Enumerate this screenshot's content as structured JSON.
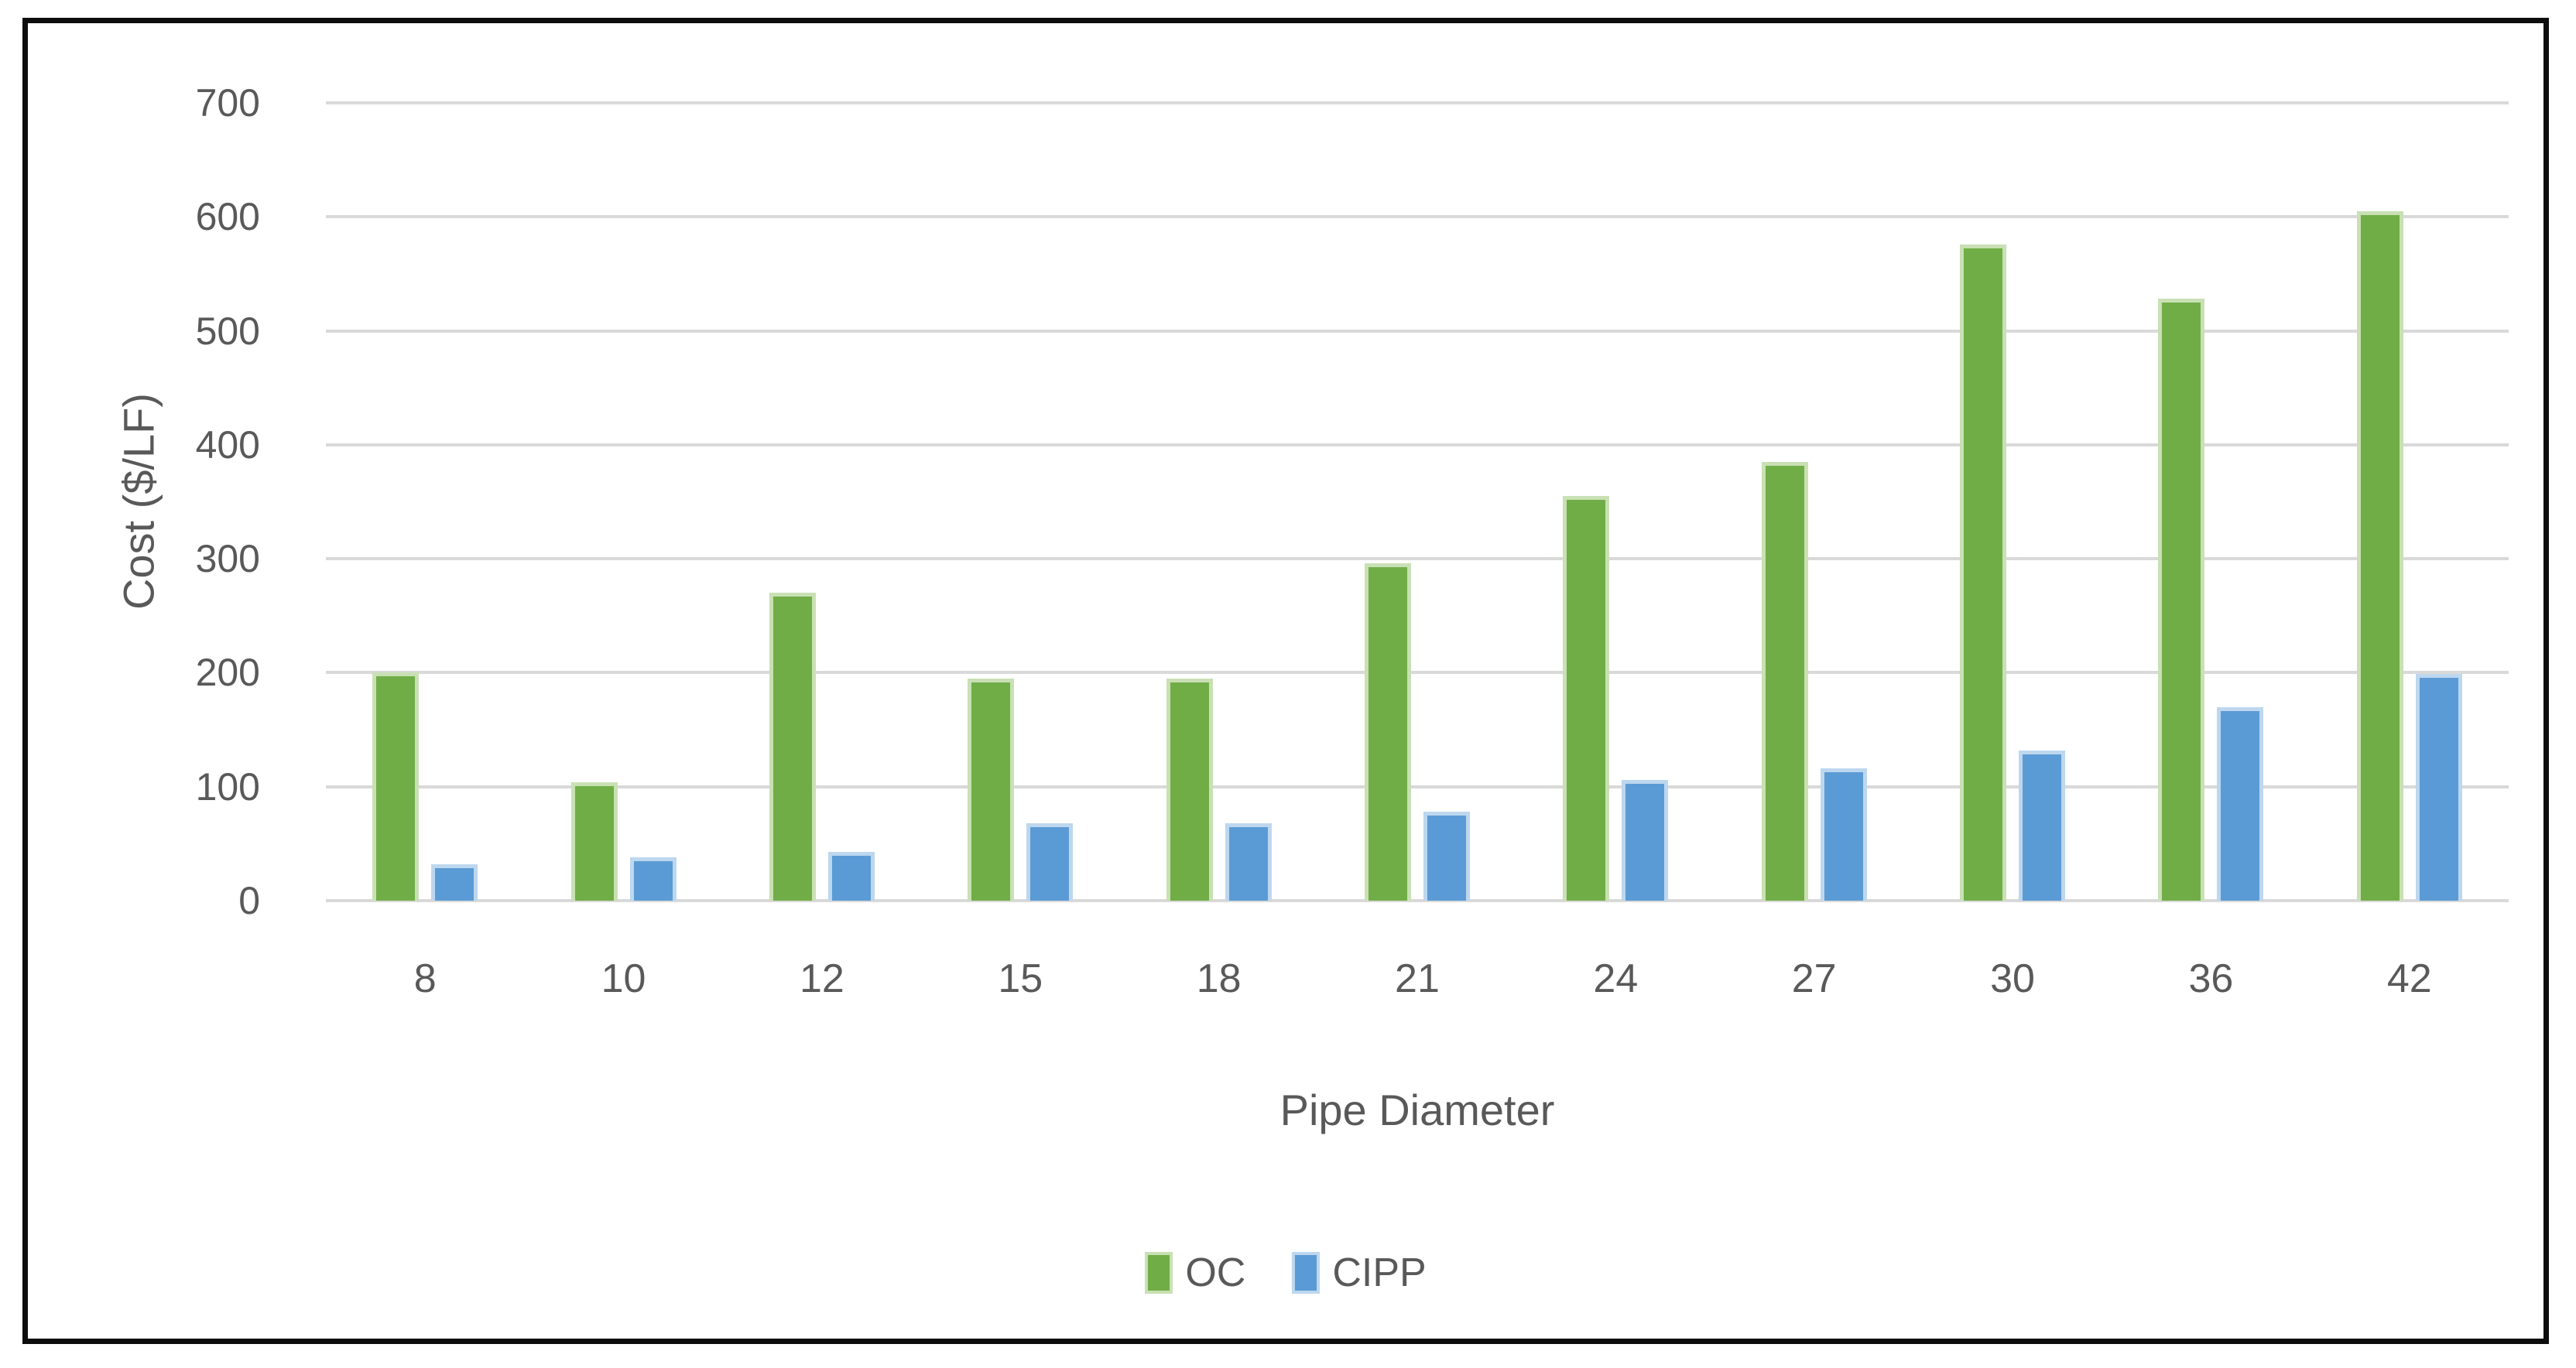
{
  "chart_data": {
    "type": "bar",
    "title": "",
    "xlabel": "Pipe Diameter",
    "ylabel": "Cost ($/LF)",
    "ylim": [
      0,
      700
    ],
    "ytick_interval": 100,
    "yticks": [
      0,
      100,
      200,
      300,
      400,
      500,
      600,
      700
    ],
    "grid": true,
    "legend_position": "bottom",
    "categories": [
      "8",
      "10",
      "12",
      "15",
      "18",
      "21",
      "24",
      "27",
      "30",
      "36",
      "42"
    ],
    "series": [
      {
        "name": "OC",
        "color": "#70AD47",
        "border_color": "#C9E0B4",
        "values": [
          200,
          104,
          270,
          195,
          195,
          296,
          355,
          385,
          576,
          528,
          605
        ]
      },
      {
        "name": "CIPP",
        "color": "#5B9BD5",
        "border_color": "#BDD7EE",
        "values": [
          32,
          38,
          43,
          68,
          68,
          78,
          106,
          116,
          132,
          170,
          199
        ]
      }
    ],
    "colors": {
      "gridline": "#D9D9D9",
      "axis_text": "#595959",
      "frame_border": "#0D0D0D",
      "background": "#FFFFFF"
    }
  }
}
